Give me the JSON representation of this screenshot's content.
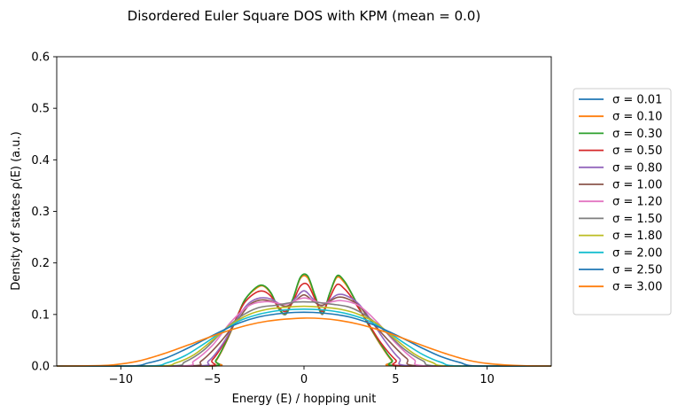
{
  "chart_data": {
    "type": "line",
    "title": "Disordered Euler Square DOS with KPM (mean = 0.0)",
    "xlabel": "Energy (E) / hopping unit",
    "ylabel": "Density of states ρ(E) (a.u.)",
    "xlim": [
      -13.5,
      13.5
    ],
    "ylim": [
      0,
      0.6
    ],
    "xticks": [
      -10,
      -5,
      0,
      5,
      10
    ],
    "yticks": [
      0.0,
      0.1,
      0.2,
      0.3,
      0.4,
      0.5,
      0.6
    ],
    "xtick_labels": [
      "−10",
      "−5",
      "0",
      "5",
      "10"
    ],
    "ytick_labels": [
      "0.0",
      "0.1",
      "0.2",
      "0.3",
      "0.4",
      "0.5",
      "0.6"
    ],
    "grid": false,
    "legend_position": "right-outside",
    "series": [
      {
        "name": "σ = 0.01",
        "color": "#1f77b4",
        "x": [
          -13.5,
          -5.2,
          -4.8,
          -4.2,
          -3.6,
          -3.2,
          -2.6,
          -2.2,
          -1.8,
          -1.4,
          -1.0,
          -0.6,
          -0.2,
          0.2,
          0.6,
          1.0,
          1.4,
          1.8,
          2.2,
          2.6,
          3.2,
          3.6,
          4.2,
          4.8,
          5.2,
          13.5
        ],
        "y": [
          0,
          0,
          0.01,
          0.05,
          0.1,
          0.13,
          0.152,
          0.155,
          0.14,
          0.112,
          0.1,
          0.13,
          0.17,
          0.172,
          0.135,
          0.1,
          0.14,
          0.173,
          0.163,
          0.14,
          0.1,
          0.075,
          0.04,
          0.01,
          0,
          0
        ]
      },
      {
        "name": "σ = 0.10",
        "color": "#ff7f0e",
        "x": [
          -13.5,
          -5.2,
          -4.8,
          -4.2,
          -3.6,
          -3.2,
          -2.6,
          -2.2,
          -1.8,
          -1.4,
          -1.0,
          -0.6,
          -0.2,
          0.2,
          0.6,
          1.0,
          1.4,
          1.8,
          2.2,
          2.6,
          3.2,
          3.6,
          4.2,
          4.8,
          5.2,
          13.5
        ],
        "y": [
          0,
          0,
          0.01,
          0.05,
          0.1,
          0.13,
          0.151,
          0.155,
          0.14,
          0.112,
          0.101,
          0.13,
          0.17,
          0.171,
          0.135,
          0.101,
          0.14,
          0.172,
          0.162,
          0.14,
          0.1,
          0.075,
          0.04,
          0.01,
          0,
          0
        ]
      },
      {
        "name": "σ = 0.30",
        "color": "#2ca02c",
        "x": [
          -13.5,
          -5.4,
          -4.8,
          -4.2,
          -3.6,
          -3.2,
          -2.6,
          -2.2,
          -1.8,
          -1.4,
          -1.0,
          -0.6,
          -0.2,
          0.2,
          0.6,
          1.0,
          1.4,
          1.8,
          2.2,
          2.6,
          3.2,
          3.6,
          4.2,
          4.8,
          5.4,
          13.5
        ],
        "y": [
          0,
          0,
          0.012,
          0.052,
          0.1,
          0.13,
          0.153,
          0.156,
          0.142,
          0.113,
          0.102,
          0.131,
          0.172,
          0.175,
          0.137,
          0.102,
          0.141,
          0.175,
          0.165,
          0.141,
          0.1,
          0.076,
          0.042,
          0.012,
          0,
          0
        ]
      },
      {
        "name": "σ = 0.50",
        "color": "#d62728",
        "x": [
          -13.5,
          -5.6,
          -5.0,
          -4.2,
          -3.6,
          -3.2,
          -2.6,
          -2.2,
          -1.8,
          -1.4,
          -1.0,
          -0.6,
          -0.2,
          0.2,
          0.6,
          1.0,
          1.4,
          1.8,
          2.2,
          2.6,
          3.2,
          3.6,
          4.2,
          5.0,
          5.6,
          13.5
        ],
        "y": [
          0,
          0,
          0.012,
          0.055,
          0.1,
          0.125,
          0.143,
          0.145,
          0.135,
          0.115,
          0.106,
          0.125,
          0.155,
          0.158,
          0.13,
          0.106,
          0.132,
          0.158,
          0.15,
          0.133,
          0.1,
          0.078,
          0.045,
          0.012,
          0,
          0
        ]
      },
      {
        "name": "σ = 0.80",
        "color": "#9467bd",
        "x": [
          -13.5,
          -6.0,
          -5.2,
          -4.4,
          -3.6,
          -3.0,
          -2.4,
          -1.8,
          -1.0,
          -0.5,
          0.0,
          0.5,
          1.0,
          1.8,
          2.4,
          3.0,
          3.6,
          4.4,
          5.2,
          6.0,
          13.5
        ],
        "y": [
          0,
          0,
          0.01,
          0.045,
          0.095,
          0.122,
          0.132,
          0.13,
          0.115,
          0.13,
          0.146,
          0.13,
          0.117,
          0.138,
          0.135,
          0.12,
          0.092,
          0.05,
          0.015,
          0,
          0
        ]
      },
      {
        "name": "σ = 1.00",
        "color": "#8c564b",
        "x": [
          -13.5,
          -6.4,
          -5.6,
          -4.6,
          -3.6,
          -3.0,
          -2.4,
          -1.8,
          -1.0,
          -0.5,
          0.0,
          0.5,
          1.0,
          1.8,
          2.4,
          3.0,
          3.6,
          4.6,
          5.6,
          6.4,
          13.5
        ],
        "y": [
          0,
          0,
          0.01,
          0.045,
          0.09,
          0.118,
          0.128,
          0.126,
          0.116,
          0.126,
          0.138,
          0.126,
          0.118,
          0.133,
          0.13,
          0.117,
          0.09,
          0.05,
          0.015,
          0,
          0
        ]
      },
      {
        "name": "σ = 1.20",
        "color": "#e377c2",
        "x": [
          -13.5,
          -6.8,
          -6.0,
          -5.0,
          -4.0,
          -3.0,
          -2.0,
          -1.0,
          0.0,
          1.0,
          2.0,
          3.0,
          4.0,
          5.0,
          6.0,
          6.8,
          13.5
        ],
        "y": [
          0,
          0,
          0.01,
          0.04,
          0.085,
          0.117,
          0.125,
          0.12,
          0.132,
          0.122,
          0.127,
          0.117,
          0.085,
          0.045,
          0.013,
          0,
          0
        ]
      },
      {
        "name": "σ = 1.50",
        "color": "#7f7f7f",
        "x": [
          -13.5,
          -7.4,
          -6.5,
          -5.5,
          -4.5,
          -3.5,
          -2.5,
          -1.5,
          -0.5,
          0.5,
          1.5,
          2.5,
          3.5,
          4.5,
          5.5,
          6.5,
          7.4,
          13.5
        ],
        "y": [
          0,
          0,
          0.008,
          0.03,
          0.065,
          0.095,
          0.113,
          0.118,
          0.124,
          0.124,
          0.12,
          0.114,
          0.095,
          0.065,
          0.032,
          0.01,
          0,
          0
        ]
      },
      {
        "name": "σ = 1.80",
        "color": "#bcbd22",
        "x": [
          -13.5,
          -8.0,
          -7.0,
          -6.0,
          -5.0,
          -4.0,
          -3.0,
          -2.0,
          -1.0,
          0.0,
          1.0,
          2.0,
          3.0,
          4.0,
          5.0,
          6.0,
          7.0,
          8.0,
          13.5
        ],
        "y": [
          0,
          0,
          0.006,
          0.022,
          0.05,
          0.08,
          0.1,
          0.11,
          0.114,
          0.116,
          0.114,
          0.11,
          0.1,
          0.082,
          0.052,
          0.024,
          0.007,
          0,
          0
        ]
      },
      {
        "name": "σ = 2.00",
        "color": "#17becf",
        "x": [
          -13.5,
          -8.5,
          -7.5,
          -6.5,
          -5.5,
          -4.5,
          -3.5,
          -2.5,
          -1.5,
          -0.5,
          0.5,
          1.5,
          2.5,
          3.5,
          4.5,
          5.5,
          6.5,
          7.5,
          8.5,
          13.5
        ],
        "y": [
          0,
          0,
          0.006,
          0.02,
          0.042,
          0.066,
          0.088,
          0.1,
          0.107,
          0.11,
          0.11,
          0.107,
          0.1,
          0.088,
          0.068,
          0.044,
          0.022,
          0.007,
          0,
          0
        ]
      },
      {
        "name": "σ = 2.50",
        "color": "#1f77b4",
        "x": [
          -13.5,
          -9.5,
          -8.5,
          -7.5,
          -6.5,
          -5.5,
          -4.5,
          -3.5,
          -2.5,
          -1.5,
          -0.5,
          0.5,
          1.5,
          2.5,
          3.5,
          4.5,
          5.5,
          6.5,
          7.5,
          8.5,
          9.5,
          13.5
        ],
        "y": [
          0,
          0,
          0.006,
          0.016,
          0.032,
          0.05,
          0.068,
          0.084,
          0.095,
          0.101,
          0.104,
          0.104,
          0.101,
          0.095,
          0.084,
          0.069,
          0.052,
          0.034,
          0.018,
          0.007,
          0,
          0
        ]
      },
      {
        "name": "σ = 3.00",
        "color": "#ff7f0e",
        "x": [
          -13.5,
          -11.0,
          -10.0,
          -9.0,
          -8.0,
          -7.0,
          -6.0,
          -5.0,
          -4.0,
          -3.0,
          -2.0,
          -1.0,
          0.0,
          1.0,
          2.0,
          3.0,
          4.0,
          5.0,
          6.0,
          7.0,
          8.0,
          9.0,
          10.0,
          11.0,
          12.0,
          13.5
        ],
        "y": [
          0,
          0.001,
          0.004,
          0.01,
          0.02,
          0.032,
          0.045,
          0.058,
          0.07,
          0.08,
          0.087,
          0.091,
          0.093,
          0.092,
          0.088,
          0.081,
          0.071,
          0.059,
          0.046,
          0.033,
          0.021,
          0.011,
          0.005,
          0.002,
          0.0005,
          0
        ]
      }
    ]
  }
}
